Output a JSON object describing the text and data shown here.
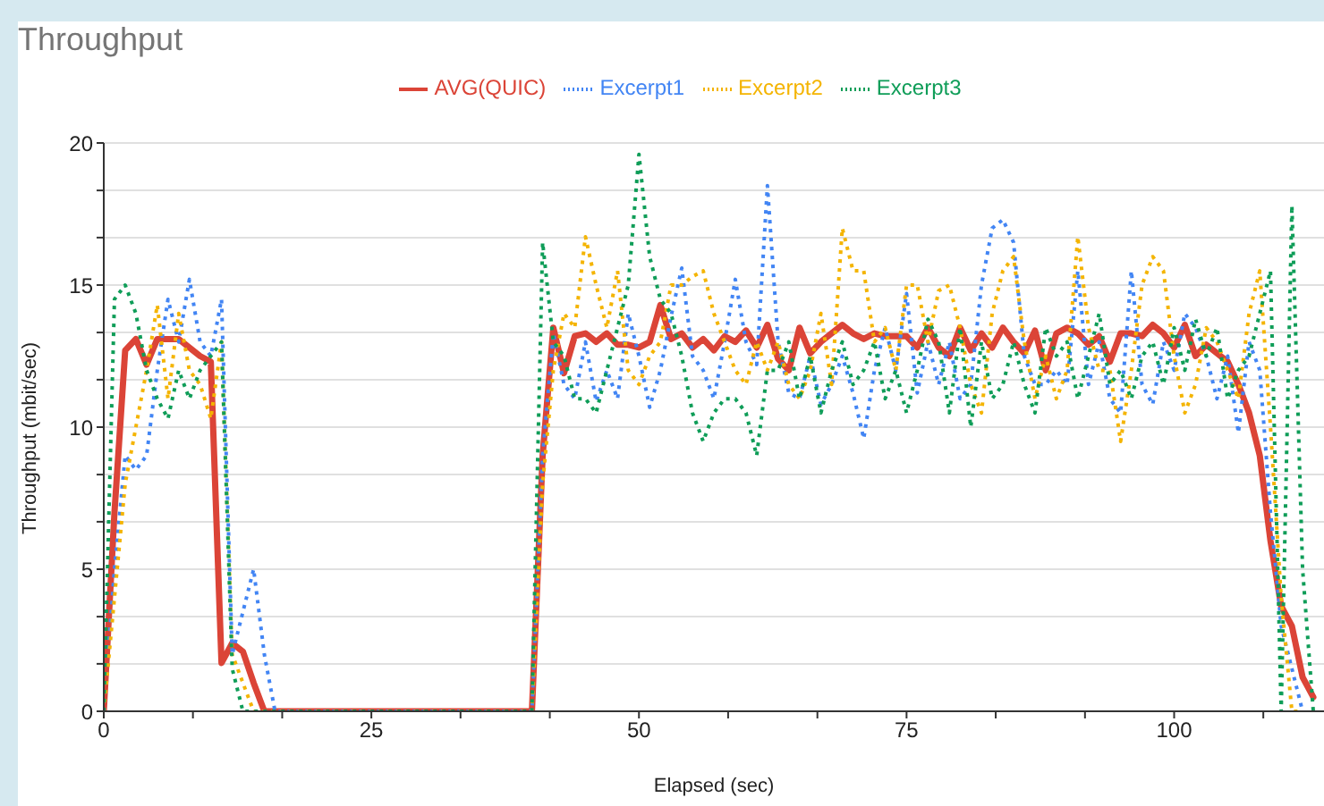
{
  "chart_data": {
    "type": "line",
    "title": "Throughput",
    "xlabel": "Elapsed (sec)",
    "ylabel": "Throughput (mbit/sec)",
    "xlim": [
      0,
      114
    ],
    "xticks": [
      0,
      {
        "value": 8.33,
        "label": null
      },
      {
        "value": 16.67,
        "label": null
      },
      25,
      {
        "value": 33.33,
        "label": null
      },
      {
        "value": 41.67,
        "label": null
      },
      50,
      {
        "value": 58.33,
        "label": null
      },
      {
        "value": 66.67,
        "label": null
      },
      75,
      {
        "value": 83.33,
        "label": null
      },
      {
        "value": 91.67,
        "label": null
      },
      100,
      {
        "value": 108.33,
        "label": null
      }
    ],
    "ylim": [
      0,
      20
    ],
    "yticks": [
      0,
      {
        "value": 1.67,
        "label": null
      },
      {
        "value": 3.33,
        "label": null
      },
      5,
      {
        "value": 6.67,
        "label": null
      },
      {
        "value": 8.33,
        "label": null
      },
      10,
      {
        "value": 11.67,
        "label": null
      },
      {
        "value": 13.33,
        "label": null
      },
      15,
      {
        "value": 16.67,
        "label": null
      },
      {
        "value": 18.33,
        "label": null
      },
      20
    ],
    "grid": "y",
    "legend": "top",
    "marker": "none",
    "series": [
      {
        "name": "AVG(QUIC)",
        "color": "#db4437",
        "line_style": "solid",
        "x": [
          0,
          1,
          2,
          3,
          4,
          5,
          6,
          7,
          8,
          9,
          10,
          11,
          12,
          13,
          14,
          15,
          40,
          41,
          42,
          43,
          44,
          45,
          46,
          47,
          48,
          49,
          50,
          51,
          52,
          53,
          54,
          55,
          56,
          57,
          58,
          59,
          60,
          61,
          62,
          63,
          64,
          65,
          66,
          67,
          68,
          69,
          70,
          71,
          72,
          73,
          74,
          75,
          76,
          77,
          78,
          79,
          80,
          81,
          82,
          83,
          84,
          85,
          86,
          87,
          88,
          89,
          90,
          91,
          92,
          93,
          94,
          95,
          96,
          97,
          98,
          99,
          100,
          101,
          102,
          103,
          104,
          105,
          106,
          107,
          108,
          109,
          110,
          111,
          112,
          113
        ],
        "values": [
          0,
          7,
          12.7,
          13.1,
          12.2,
          13.1,
          13.1,
          13.1,
          12.8,
          12.5,
          12.3,
          1.7,
          2.4,
          2.1,
          1,
          0,
          0,
          9,
          13.5,
          11.9,
          13.2,
          13.3,
          13,
          13.3,
          12.9,
          12.9,
          12.8,
          13,
          14.3,
          13.1,
          13.3,
          12.8,
          13.1,
          12.7,
          13.2,
          13,
          13.4,
          12.8,
          13.6,
          12.4,
          12,
          13.5,
          12.6,
          13,
          13.3,
          13.6,
          13.3,
          13.1,
          13.3,
          13.2,
          13.2,
          13.2,
          12.8,
          13.5,
          12.8,
          12.5,
          13.5,
          12.7,
          13.3,
          12.8,
          13.5,
          13,
          12.6,
          13.4,
          12,
          13.3,
          13.5,
          13.3,
          12.9,
          13.2,
          12.3,
          13.3,
          13.3,
          13.2,
          13.6,
          13.3,
          12.8,
          13.6,
          12.5,
          12.9,
          12.6,
          12.3,
          11.5,
          10.5,
          9,
          6,
          3.7,
          3,
          1.2,
          0.5
        ]
      },
      {
        "name": "Excerpt1",
        "color": "#4285f4",
        "line_style": "dotted",
        "x": [
          0,
          1,
          2,
          3,
          4,
          5,
          6,
          7,
          8,
          9,
          10,
          11,
          12,
          13,
          14,
          15,
          16,
          40,
          41,
          42,
          43,
          44,
          45,
          46,
          47,
          48,
          49,
          50,
          51,
          52,
          53,
          54,
          55,
          56,
          57,
          58,
          59,
          60,
          61,
          62,
          63,
          64,
          65,
          66,
          67,
          68,
          69,
          70,
          71,
          72,
          73,
          74,
          75,
          76,
          77,
          78,
          79,
          80,
          81,
          82,
          83,
          84,
          85,
          86,
          87,
          88,
          89,
          90,
          91,
          92,
          93,
          94,
          95,
          96,
          97,
          98,
          99,
          100,
          101,
          102,
          103,
          104,
          105,
          106,
          107,
          108,
          109,
          110,
          111,
          112
        ],
        "values": [
          0,
          5,
          9,
          8.5,
          9,
          12,
          14.5,
          13,
          15.2,
          13,
          12.5,
          14.5,
          2,
          3.5,
          5,
          2,
          0,
          0,
          9,
          13.3,
          11.5,
          11,
          13,
          10.9,
          12,
          11,
          14,
          12.5,
          10.7,
          12,
          13.9,
          15.6,
          12.5,
          12,
          11,
          13,
          15.2,
          13,
          12.2,
          18.5,
          13,
          11.2,
          11,
          12.5,
          10.8,
          11.5,
          12.5,
          11.2,
          9.6,
          12,
          13.5,
          12,
          14.7,
          11.2,
          13,
          11.5,
          13,
          11,
          11.5,
          15,
          17,
          17.3,
          16.5,
          12.5,
          11.5,
          11.5,
          12,
          11.5,
          15.5,
          11.5,
          13,
          11,
          10.5,
          15.5,
          11.5,
          10.8,
          13,
          12,
          14,
          13.5,
          12.5,
          11,
          12.5,
          9.8,
          13,
          12,
          7,
          3,
          1.5,
          0
        ]
      },
      {
        "name": "Excerpt2",
        "color": "#f4b400",
        "line_style": "dotted",
        "x": [
          0,
          1,
          2,
          3,
          4,
          5,
          6,
          7,
          8,
          9,
          10,
          11,
          12,
          13,
          14,
          40,
          41,
          42,
          43,
          44,
          45,
          46,
          47,
          48,
          49,
          50,
          51,
          52,
          53,
          54,
          55,
          56,
          57,
          58,
          59,
          60,
          61,
          62,
          63,
          64,
          65,
          66,
          67,
          68,
          69,
          70,
          71,
          72,
          73,
          74,
          75,
          76,
          77,
          78,
          79,
          80,
          81,
          82,
          83,
          84,
          85,
          86,
          87,
          88,
          89,
          90,
          91,
          92,
          93,
          94,
          95,
          96,
          97,
          98,
          99,
          100,
          101,
          102,
          103,
          104,
          105,
          106,
          107,
          108,
          109,
          110,
          111,
          112
        ],
        "values": [
          0,
          4,
          8,
          10,
          12,
          14.3,
          11,
          14,
          12,
          11.5,
          10.3,
          13,
          2,
          1,
          0,
          0,
          8,
          12,
          14,
          13.5,
          16.7,
          15,
          13.5,
          15.5,
          12,
          11.5,
          12.5,
          13,
          15,
          15,
          15.3,
          15.5,
          14,
          13,
          12,
          11.5,
          13,
          12,
          13,
          11.5,
          11,
          12,
          14,
          11.5,
          17,
          15.5,
          15.5,
          13,
          13.5,
          12,
          15,
          15,
          13,
          14.8,
          15,
          13.5,
          11.5,
          10.5,
          14,
          15.5,
          16,
          13,
          11,
          12.5,
          11,
          12,
          16.7,
          13.5,
          12,
          12,
          9.5,
          12,
          15,
          16,
          15.5,
          12.5,
          10.5,
          11.5,
          13.5,
          13,
          12,
          11,
          14,
          15.5,
          10,
          4,
          0,
          0
        ]
      },
      {
        "name": "Excerpt3",
        "color": "#0f9d58",
        "line_style": "dotted",
        "x": [
          0,
          1,
          2,
          3,
          4,
          5,
          6,
          7,
          8,
          9,
          10,
          11,
          12,
          13,
          14,
          40,
          41,
          42,
          43,
          44,
          45,
          46,
          47,
          48,
          49,
          50,
          51,
          52,
          53,
          54,
          55,
          56,
          57,
          58,
          59,
          60,
          61,
          62,
          63,
          64,
          65,
          66,
          67,
          68,
          69,
          70,
          71,
          72,
          73,
          74,
          75,
          76,
          77,
          78,
          79,
          80,
          81,
          82,
          83,
          84,
          85,
          86,
          87,
          88,
          89,
          90,
          91,
          92,
          93,
          94,
          95,
          96,
          97,
          98,
          99,
          100,
          101,
          102,
          103,
          104,
          105,
          106,
          107,
          108,
          109,
          110,
          111,
          112,
          113
        ],
        "values": [
          0,
          14.5,
          15,
          14,
          12,
          11,
          10.3,
          12,
          11,
          12,
          12.5,
          13,
          1.5,
          0,
          0,
          0,
          16.5,
          13,
          12.5,
          11,
          11,
          10.5,
          12,
          13.5,
          15,
          19.6,
          16,
          14.5,
          14,
          12.5,
          10.5,
          9.5,
          10.5,
          11,
          11,
          10.5,
          9,
          12,
          12,
          13,
          11,
          12.5,
          10.5,
          12,
          13,
          11.5,
          12,
          13,
          11,
          12,
          10.5,
          12,
          13.8,
          13,
          10.5,
          13.5,
          10,
          13,
          11,
          11.5,
          13,
          11.5,
          10.5,
          13.5,
          12.5,
          13,
          11,
          12.5,
          14,
          11.5,
          12,
          11,
          12.5,
          13,
          11.5,
          13.5,
          12,
          13.8,
          12.5,
          13.5,
          11,
          12,
          12.5,
          14,
          15.5,
          0,
          17.8,
          5,
          0
        ]
      }
    ]
  }
}
